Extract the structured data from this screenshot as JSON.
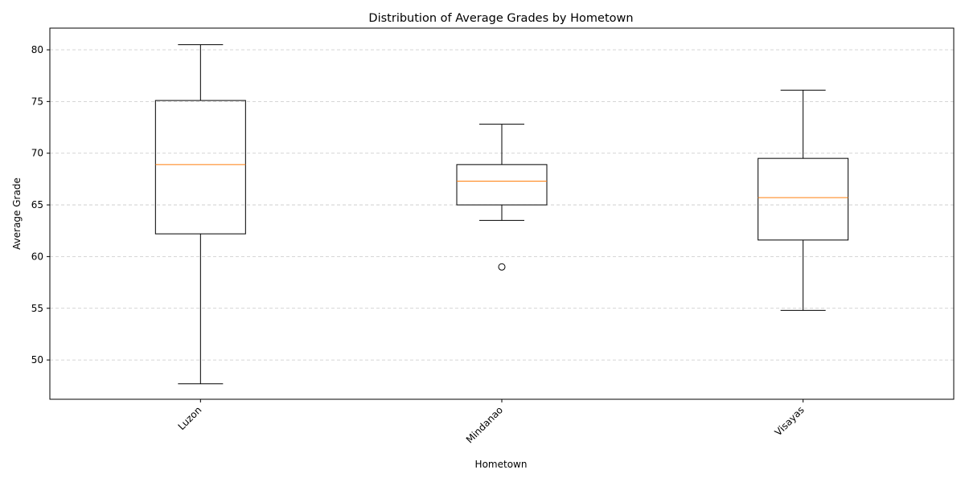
{
  "chart_data": {
    "type": "boxplot",
    "title": "Distribution of Average Grades by Hometown",
    "xlabel": "Hometown",
    "ylabel": "Average Grade",
    "categories": [
      "Luzon",
      "Mindanao",
      "Visayas"
    ],
    "ylim": [
      46.2,
      82.1
    ],
    "yticks": [
      50,
      55,
      60,
      65,
      70,
      75,
      80
    ],
    "grid": "y-dashed",
    "colors": {
      "box": "#000000",
      "median": "#ff7f0e",
      "grid": "#c8c8c8"
    },
    "boxes": [
      {
        "category": "Luzon",
        "whisker_low": 47.7,
        "q1": 62.2,
        "median": 68.9,
        "q3": 75.1,
        "whisker_high": 80.5,
        "outliers": []
      },
      {
        "category": "Mindanao",
        "whisker_low": 63.5,
        "q1": 65.0,
        "median": 67.3,
        "q3": 68.9,
        "whisker_high": 72.8,
        "outliers": [
          59.0
        ]
      },
      {
        "category": "Visayas",
        "whisker_low": 54.8,
        "q1": 61.6,
        "median": 65.7,
        "q3": 69.5,
        "whisker_high": 76.1,
        "outliers": []
      }
    ]
  }
}
